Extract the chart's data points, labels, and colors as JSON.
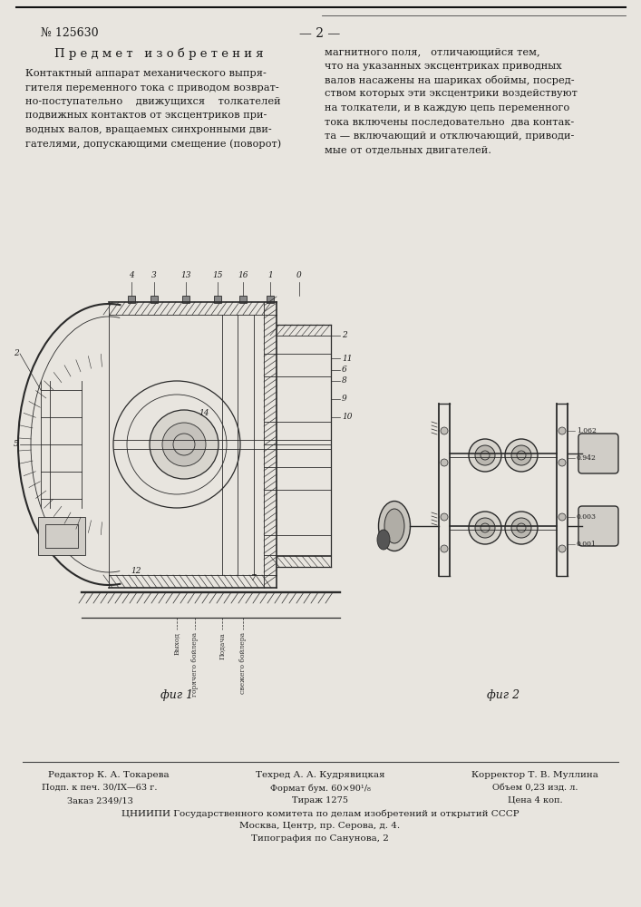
{
  "page_color": "#e8e5df",
  "text_color": "#1a1a1a",
  "patent_number": "№ 125630",
  "page_number": "— 2 —",
  "section_title": "П р е д м е т   и з о б р е т е н и я",
  "left_text_lines": [
    "Контактный аппарат механического выпря-",
    "гителя переменного тока с приводом возврат-",
    "но-поступательно    движущихся    толкателей",
    "подвижных контактов от эксцентриков при-",
    "водных валов, вращаемых синхронными дви-",
    "гателями, допускающими смещение (поворот)"
  ],
  "right_text_lines": [
    "магнитного поля,   отличающийся тем,",
    "что на указанных эксцентриках приводных",
    "валов насажены на шариках обоймы, посред-",
    "ством которых эти эксцентрики воздействуют",
    "на толкатели, и в каждую цепь переменного",
    "тока включены последовательно  два контак-",
    "та — включающий и отключающий, приводи-",
    "мые от отдельных двигателей."
  ],
  "fig1_label": "фиг 1",
  "fig2_label": "фиг 2",
  "footer_editor": "Редактор К. А. Токарева",
  "footer_techr": "Техред А. А. Кудрявицкая",
  "footer_corrector": "Корректор Т. В. Муллина",
  "footer_podp": "Подп. к печ. 30/IX—63 г.",
  "footer_format": "Формат бум. 60×90¹/₈",
  "footer_obem": "Объем 0,23 изд. л.",
  "footer_zakaz": "Заказ 2349/13",
  "footer_tirazh": "Тираж 1275",
  "footer_cena": "Цена 4 коп.",
  "footer_org": "ЦНИИПИ Государственного комитета по делам изобретений и открытий СССР",
  "footer_addr": "Москва, Центр, пр. Серова, д. 4.",
  "footer_typo": "Типография по Санунова, 2"
}
